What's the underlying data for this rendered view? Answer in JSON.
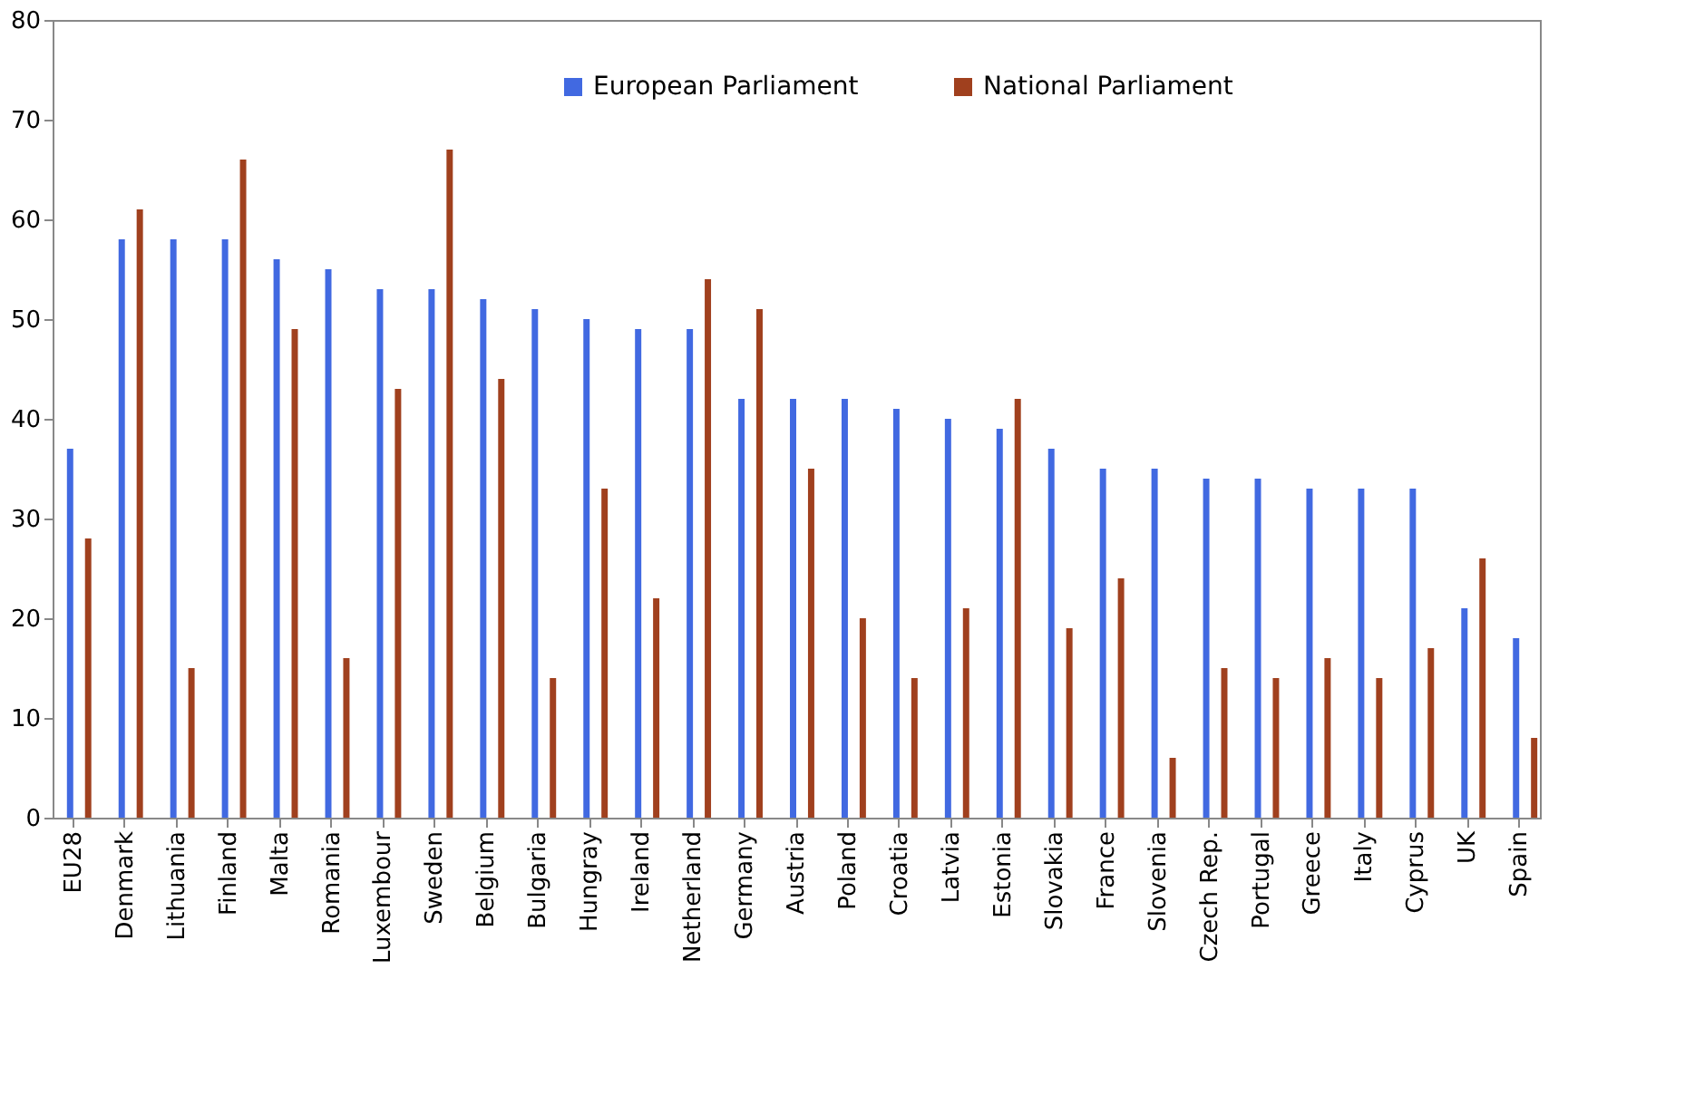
{
  "chart_data": {
    "type": "bar",
    "categories": [
      "EU28",
      "Denmark",
      "Lithuania",
      "Finland",
      "Malta",
      "Romania",
      "Luxembour",
      "Sweden",
      "Belgium",
      "Bulgaria",
      "Hungray",
      "Ireland",
      "Netherland",
      "Germany",
      "Austria",
      "Poland",
      "Croatia",
      "Latvia",
      "Estonia",
      "Slovakia",
      "France",
      "Slovenia",
      "Czech Rep.",
      "Portugal",
      "Greece",
      "Italy",
      "Cyprus",
      "UK",
      "Spain"
    ],
    "series": [
      {
        "name": "European Parliament",
        "color": "#4169e1",
        "values": [
          37,
          58,
          58,
          58,
          56,
          55,
          53,
          53,
          52,
          51,
          50,
          49,
          49,
          42,
          42,
          42,
          41,
          40,
          39,
          37,
          35,
          35,
          34,
          34,
          33,
          33,
          33,
          21,
          18
        ]
      },
      {
        "name": "National Parliament",
        "color": "#a0401e",
        "values": [
          28,
          61,
          15,
          66,
          49,
          16,
          43,
          67,
          44,
          14,
          33,
          22,
          54,
          51,
          35,
          20,
          14,
          21,
          42,
          19,
          24,
          6,
          15,
          14,
          16,
          14,
          17,
          26,
          8
        ]
      }
    ],
    "ylim": [
      0,
      80
    ],
    "yticks": [
      0,
      10,
      20,
      30,
      40,
      50,
      60,
      70,
      80
    ],
    "grid": false,
    "legend": "top"
  }
}
